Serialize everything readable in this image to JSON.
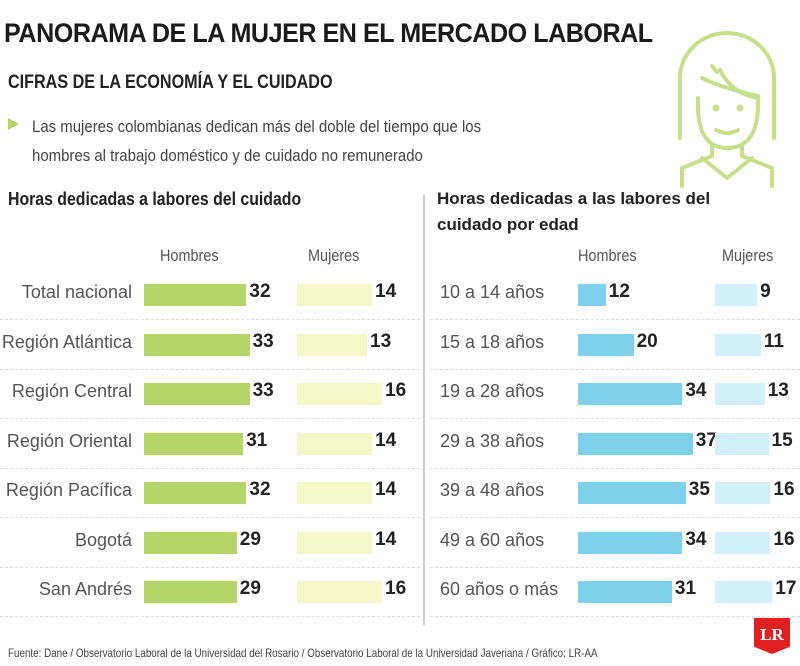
{
  "title": "PANORAMA DE LA MUJER EN EL MERCADO LABORAL",
  "subtitle": "CIFRAS DE LA ECONOMÍA Y EL CUIDADO",
  "description": "Las mujeres colombianas dedican más del doble del tiempo que los hombres al trabajo doméstico y de cuidado no remunerado",
  "footer": "Fuente: Dane / Observatorio Laboral de la Universidad del Rosario / Observatorio Laboral de la Universidad Javeriana / Gráfico: LR-AA",
  "logo": "LR",
  "colors": {
    "hombres_left": "#b5d56a",
    "mujeres_left": "#f4f7c8",
    "hombres_right": "#7fd0ea",
    "mujeres_right": "#d2f0fa",
    "icon": "#c6df8a"
  },
  "icon": "woman-icon",
  "chart_data": [
    {
      "type": "bar",
      "title": "Horas dedicadas a labores del cuidado",
      "categories": [
        "Total nacional",
        "Región Atlántica",
        "Región Central",
        "Región Oriental",
        "Región Pacífica",
        "Bogotá",
        "San Andrés"
      ],
      "series": [
        {
          "name": "Hombres",
          "values": [
            32,
            33,
            33,
            31,
            32,
            29,
            29
          ]
        },
        {
          "name": "Mujeres",
          "values": [
            14,
            13,
            16,
            14,
            14,
            14,
            16
          ]
        }
      ]
    },
    {
      "type": "bar",
      "title": "Horas dedicadas a las labores del cuidado por edad",
      "categories": [
        "10 a 14 años",
        "15 a 18 años",
        "19 a 28 años",
        "29 a 38 años",
        "39 a 48 años",
        "49 a 60 años",
        "60 años o más"
      ],
      "series": [
        {
          "name": "Hombres",
          "values": [
            12,
            20,
            34,
            37,
            35,
            34,
            31
          ]
        },
        {
          "name": "Mujeres",
          "values": [
            9,
            11,
            13,
            15,
            16,
            16,
            17
          ]
        }
      ]
    }
  ]
}
